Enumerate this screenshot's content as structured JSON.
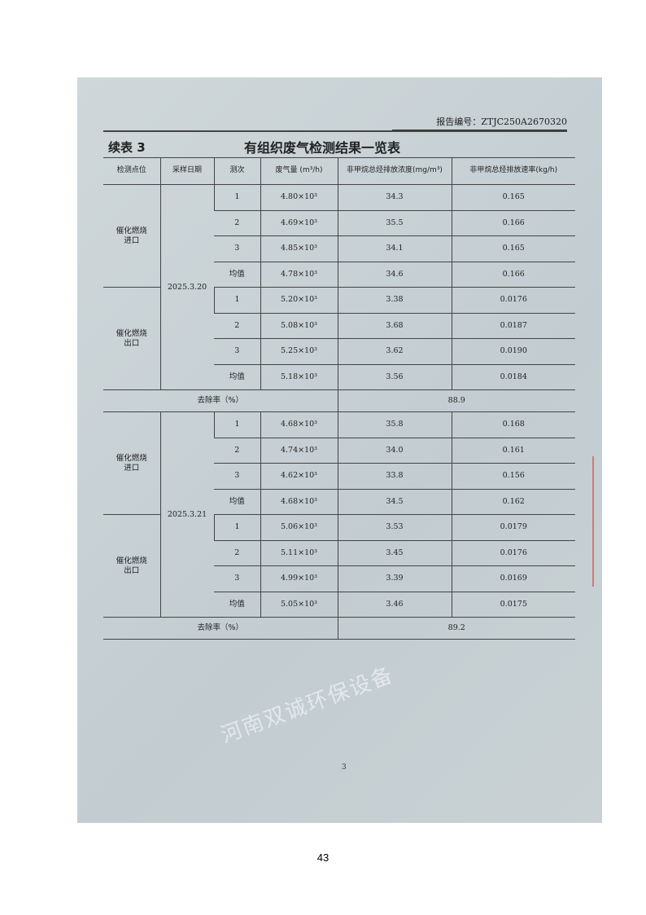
{
  "report_no": "报告编号：ZTJC250A2670320",
  "continued": "续表 3",
  "title": "有组织废气检测结果一览表",
  "headers": [
    "检测点位",
    "采样日期",
    "测次",
    "废气量 (m³/h)",
    "非甲烷总烃排放浓度(mg/m³)",
    "非甲烷总烃排放速率(kg/h)"
  ],
  "removal_label": "去除率（%）",
  "blocks": [
    {
      "date": "2025.3.20",
      "removal": "88.9",
      "groups": [
        {
          "location": "催化燃烧进口",
          "rows": [
            [
              "1",
              "4.80×10³",
              "34.3",
              "0.165"
            ],
            [
              "2",
              "4.69×10³",
              "35.5",
              "0.166"
            ],
            [
              "3",
              "4.85×10³",
              "34.1",
              "0.165"
            ],
            [
              "均值",
              "4.78×10³",
              "34.6",
              "0.166"
            ]
          ]
        },
        {
          "location": "催化燃烧出口",
          "rows": [
            [
              "1",
              "5.20×10³",
              "3.38",
              "0.0176"
            ],
            [
              "2",
              "5.08×10³",
              "3.68",
              "0.0187"
            ],
            [
              "3",
              "5.25×10³",
              "3.62",
              "0.0190"
            ],
            [
              "均值",
              "5.18×10³",
              "3.56",
              "0.0184"
            ]
          ]
        }
      ]
    },
    {
      "date": "2025.3.21",
      "removal": "89.2",
      "groups": [
        {
          "location": "催化燃烧进口",
          "rows": [
            [
              "1",
              "4.68×10³",
              "35.8",
              "0.168"
            ],
            [
              "2",
              "4.74×10³",
              "34.0",
              "0.161"
            ],
            [
              "3",
              "4.62×10³",
              "33.8",
              "0.156"
            ],
            [
              "均值",
              "4.68×10³",
              "34.5",
              "0.162"
            ]
          ]
        },
        {
          "location": "催化燃烧出口",
          "rows": [
            [
              "1",
              "5.06×10³",
              "3.53",
              "0.0179"
            ],
            [
              "2",
              "5.11×10³",
              "3.45",
              "0.0176"
            ],
            [
              "3",
              "4.99×10³",
              "3.39",
              "0.0169"
            ],
            [
              "均值",
              "5.05×10³",
              "3.46",
              "0.0175"
            ]
          ]
        }
      ]
    }
  ],
  "page_inner": "3",
  "page_footer": "43",
  "watermark": "河南双诚环保设备"
}
